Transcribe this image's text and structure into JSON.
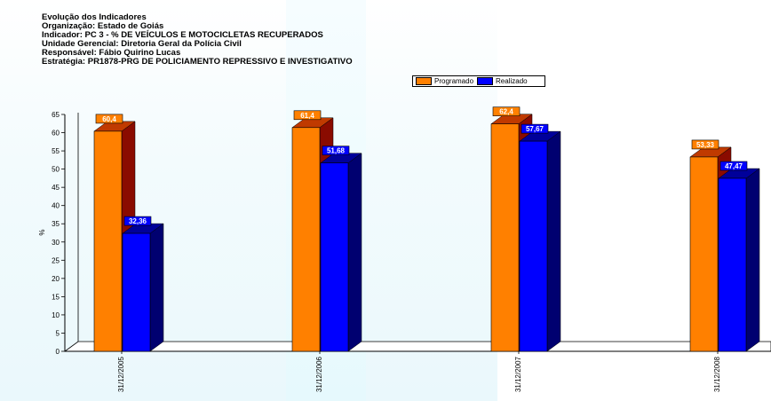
{
  "header": {
    "line1": "Evolução dos Indicadores",
    "line2": "Organização: Estado de Goiás",
    "line3": "Indicador: PC 3 - % DE VEÍCULOS E MOTOCICLETAS RECUPERADOS",
    "line4": "Unidade Gerencial: Diretoria Geral da Polícia Civil",
    "line5": "Responsável: Fábio Quirino Lucas",
    "line6": "Estratégia: PR1878-PRG DE POLICIAMENTO REPRESSIVO E INVESTIGATIVO"
  },
  "chart_data": {
    "type": "bar",
    "title": "",
    "xlabel": "",
    "ylabel": "%",
    "ylim": [
      0,
      65
    ],
    "yticks": [
      0,
      5,
      10,
      15,
      20,
      25,
      30,
      35,
      40,
      45,
      50,
      55,
      60,
      65
    ],
    "categories": [
      "31/12/2005",
      "31/12/2006",
      "31/12/2007",
      "31/12/2008"
    ],
    "series": [
      {
        "name": "Programado",
        "color": "#ff8000",
        "values": [
          60.4,
          61.4,
          62.4,
          53.33
        ],
        "labels": [
          "60,4",
          "61,4",
          "62,4",
          "53,33"
        ]
      },
      {
        "name": "Realizado",
        "color": "#0000ff",
        "values": [
          32.36,
          51.68,
          57.67,
          47.47
        ],
        "labels": [
          "32,36",
          "51,68",
          "57,67",
          "47,47"
        ]
      }
    ],
    "legend": "top",
    "grid": false
  }
}
